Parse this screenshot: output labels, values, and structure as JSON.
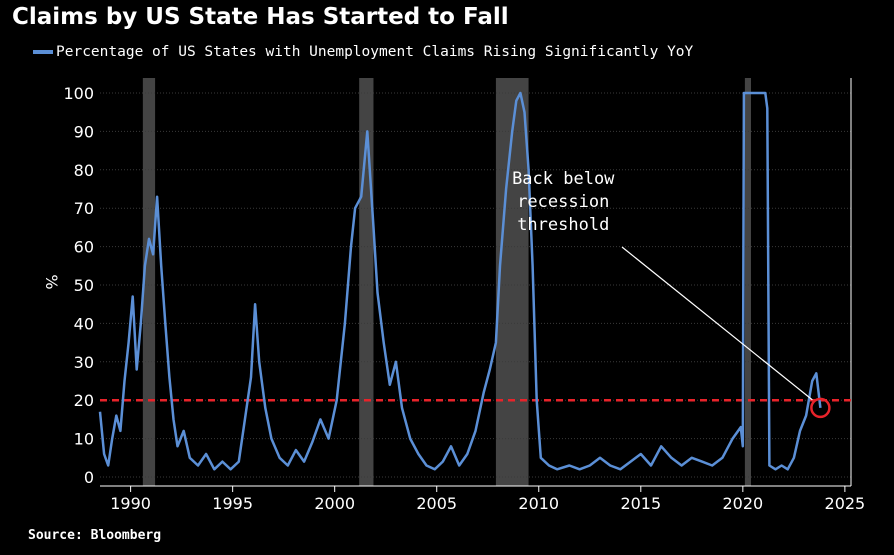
{
  "title": "Claims by US State Has Started to Fall",
  "legend": {
    "series_label": "Percentage of US States with Unemployment Claims Rising Significantly YoY",
    "color": "#5b8fd6"
  },
  "source": "Source: Bloomberg",
  "annotation": [
    "Back below",
    "recession",
    "threshold"
  ],
  "colors": {
    "background": "#000000",
    "series": "#5b8fd6",
    "threshold": "#e8232a",
    "recession": "#444444",
    "grid": "#3a3a3a",
    "marker": "#e8232a"
  },
  "chart_data": {
    "type": "line",
    "title": "Claims by US State Has Started to Fall",
    "xlabel": "",
    "ylabel": "%",
    "ylim": [
      0,
      100
    ],
    "xlim": [
      1988.5,
      2025.3
    ],
    "x_ticks": [
      1990,
      1995,
      2000,
      2005,
      2010,
      2015,
      2020,
      2025
    ],
    "y_ticks": [
      0,
      10,
      20,
      30,
      40,
      50,
      60,
      70,
      80,
      90,
      100
    ],
    "grid": true,
    "threshold": 20,
    "recessions": [
      [
        1990.6,
        1991.2
      ],
      [
        2001.2,
        2001.9
      ],
      [
        2007.9,
        2009.5
      ],
      [
        2020.1,
        2020.4
      ]
    ],
    "highlight_point": [
      2023.8,
      18
    ],
    "series": [
      {
        "name": "Percentage of US States with Unemployment Claims Rising Significantly YoY",
        "points": [
          [
            1988.5,
            17
          ],
          [
            1988.7,
            6
          ],
          [
            1988.9,
            3
          ],
          [
            1989.1,
            10
          ],
          [
            1989.3,
            16
          ],
          [
            1989.5,
            12
          ],
          [
            1989.7,
            25
          ],
          [
            1989.9,
            35
          ],
          [
            1990.1,
            47
          ],
          [
            1990.3,
            28
          ],
          [
            1990.5,
            40
          ],
          [
            1990.7,
            55
          ],
          [
            1990.9,
            62
          ],
          [
            1991.1,
            58
          ],
          [
            1991.3,
            73
          ],
          [
            1991.5,
            55
          ],
          [
            1991.7,
            40
          ],
          [
            1991.9,
            26
          ],
          [
            1992.1,
            15
          ],
          [
            1992.3,
            8
          ],
          [
            1992.6,
            12
          ],
          [
            1992.9,
            5
          ],
          [
            1993.3,
            3
          ],
          [
            1993.7,
            6
          ],
          [
            1994.1,
            2
          ],
          [
            1994.5,
            4
          ],
          [
            1994.9,
            2
          ],
          [
            1995.3,
            4
          ],
          [
            1995.6,
            15
          ],
          [
            1995.9,
            26
          ],
          [
            1996.1,
            45
          ],
          [
            1996.3,
            30
          ],
          [
            1996.6,
            18
          ],
          [
            1996.9,
            10
          ],
          [
            1997.3,
            5
          ],
          [
            1997.7,
            3
          ],
          [
            1998.1,
            7
          ],
          [
            1998.5,
            4
          ],
          [
            1998.9,
            9
          ],
          [
            1999.3,
            15
          ],
          [
            1999.7,
            10
          ],
          [
            2000.1,
            20
          ],
          [
            2000.5,
            40
          ],
          [
            2000.8,
            60
          ],
          [
            2001.0,
            70
          ],
          [
            2001.3,
            73
          ],
          [
            2001.6,
            90
          ],
          [
            2001.9,
            65
          ],
          [
            2002.1,
            48
          ],
          [
            2002.4,
            35
          ],
          [
            2002.7,
            24
          ],
          [
            2003.0,
            30
          ],
          [
            2003.3,
            18
          ],
          [
            2003.7,
            10
          ],
          [
            2004.1,
            6
          ],
          [
            2004.5,
            3
          ],
          [
            2004.9,
            2
          ],
          [
            2005.3,
            4
          ],
          [
            2005.7,
            8
          ],
          [
            2006.1,
            3
          ],
          [
            2006.5,
            6
          ],
          [
            2006.9,
            12
          ],
          [
            2007.3,
            22
          ],
          [
            2007.6,
            28
          ],
          [
            2007.9,
            35
          ],
          [
            2008.1,
            55
          ],
          [
            2008.4,
            75
          ],
          [
            2008.7,
            90
          ],
          [
            2008.9,
            98
          ],
          [
            2009.1,
            100
          ],
          [
            2009.3,
            95
          ],
          [
            2009.5,
            80
          ],
          [
            2009.7,
            55
          ],
          [
            2009.9,
            20
          ],
          [
            2010.1,
            5
          ],
          [
            2010.5,
            3
          ],
          [
            2010.9,
            2
          ],
          [
            2011.5,
            3
          ],
          [
            2012.0,
            2
          ],
          [
            2012.5,
            3
          ],
          [
            2013.0,
            5
          ],
          [
            2013.5,
            3
          ],
          [
            2014.0,
            2
          ],
          [
            2014.5,
            4
          ],
          [
            2015.0,
            6
          ],
          [
            2015.5,
            3
          ],
          [
            2016.0,
            8
          ],
          [
            2016.5,
            5
          ],
          [
            2017.0,
            3
          ],
          [
            2017.5,
            5
          ],
          [
            2018.0,
            4
          ],
          [
            2018.5,
            3
          ],
          [
            2019.0,
            5
          ],
          [
            2019.5,
            10
          ],
          [
            2019.9,
            13
          ],
          [
            2020.0,
            8
          ],
          [
            2020.05,
            100
          ],
          [
            2020.5,
            100
          ],
          [
            2020.9,
            100
          ],
          [
            2021.1,
            100
          ],
          [
            2021.2,
            96
          ],
          [
            2021.3,
            3
          ],
          [
            2021.6,
            2
          ],
          [
            2021.9,
            3
          ],
          [
            2022.2,
            2
          ],
          [
            2022.5,
            5
          ],
          [
            2022.8,
            12
          ],
          [
            2023.1,
            16
          ],
          [
            2023.4,
            25
          ],
          [
            2023.6,
            27
          ],
          [
            2023.8,
            18
          ]
        ]
      }
    ]
  }
}
